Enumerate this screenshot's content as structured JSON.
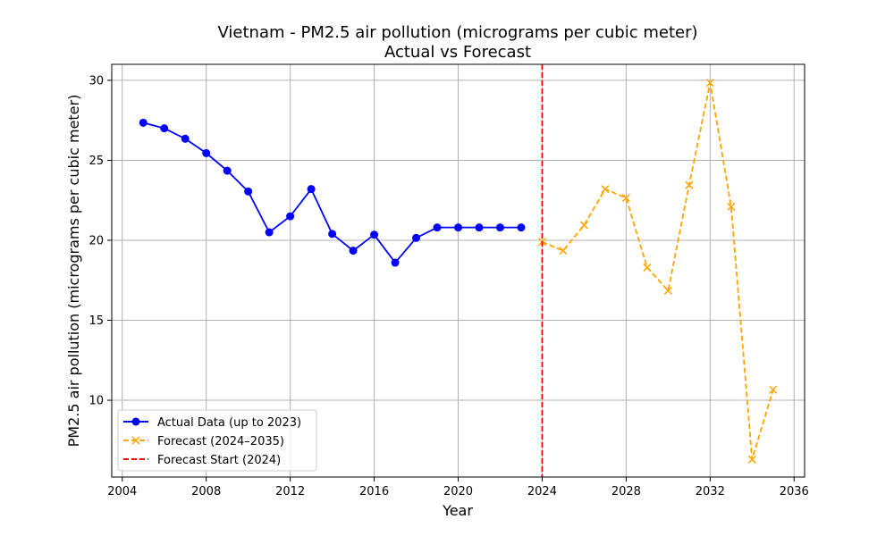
{
  "chart_data": {
    "type": "line",
    "title": "Vietnam - PM2.5 air pollution (micrograms per cubic meter)",
    "subtitle": "Actual vs Forecast",
    "xlabel": "Year",
    "ylabel": "PM2.5 air pollution (micrograms per cubic meter)",
    "xlim": [
      2003.5,
      2036.5
    ],
    "ylim": [
      5.2,
      31.0
    ],
    "xticks": [
      2004,
      2008,
      2012,
      2016,
      2020,
      2024,
      2028,
      2032,
      2036
    ],
    "yticks": [
      10,
      15,
      20,
      25,
      30
    ],
    "grid": true,
    "legend_position": "lower-left",
    "series": [
      {
        "name": "Actual Data (up to 2023)",
        "color": "#0000ff",
        "style": "solid",
        "marker": "circle",
        "x": [
          2005,
          2006,
          2007,
          2008,
          2009,
          2010,
          2011,
          2012,
          2013,
          2014,
          2015,
          2016,
          2017,
          2018,
          2019,
          2020,
          2021,
          2022,
          2023
        ],
        "y": [
          27.35,
          27.0,
          26.35,
          25.45,
          24.35,
          23.05,
          20.5,
          21.5,
          23.2,
          20.4,
          19.35,
          20.35,
          18.6,
          20.15,
          20.8,
          20.8,
          20.8,
          20.8,
          20.8
        ]
      },
      {
        "name": "Forecast (2024–2035)",
        "color": "#ffa500",
        "style": "dashed",
        "marker": "x",
        "x": [
          2024,
          2025,
          2026,
          2027,
          2028,
          2029,
          2030,
          2031,
          2032,
          2033,
          2034,
          2035
        ],
        "y": [
          19.9,
          19.35,
          20.95,
          23.2,
          22.65,
          18.3,
          16.85,
          23.45,
          29.85,
          22.1,
          6.3,
          10.65
        ]
      }
    ],
    "annotations": [
      {
        "name": "Forecast Start (2024)",
        "type": "vline",
        "x": 2024,
        "color": "#ff0000",
        "style": "dashed"
      }
    ]
  }
}
